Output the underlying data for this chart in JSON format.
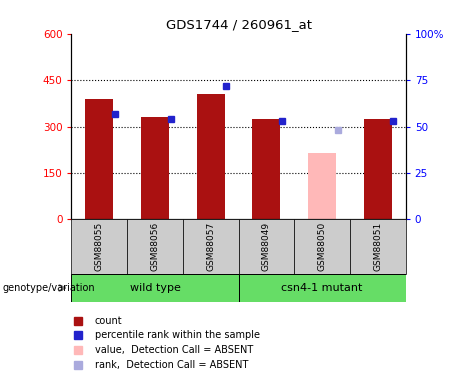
{
  "title": "GDS1744 / 260961_at",
  "samples": [
    "GSM88055",
    "GSM88056",
    "GSM88057",
    "GSM88049",
    "GSM88050",
    "GSM88051"
  ],
  "count_values": [
    390,
    330,
    405,
    325,
    215,
    325
  ],
  "rank_values": [
    57,
    54,
    72,
    53,
    48,
    53
  ],
  "absent_flags": [
    false,
    false,
    false,
    false,
    true,
    false
  ],
  "ylim_left": [
    0,
    600
  ],
  "ylim_right": [
    0,
    100
  ],
  "yticks_left": [
    0,
    150,
    300,
    450,
    600
  ],
  "yticks_right": [
    0,
    25,
    50,
    75,
    100
  ],
  "ytick_labels_left": [
    "0",
    "150",
    "300",
    "450",
    "600"
  ],
  "ytick_labels_right": [
    "0",
    "25",
    "50",
    "75",
    "100%"
  ],
  "color_bar_present": "#aa1111",
  "color_bar_absent": "#ffb8b8",
  "color_rank_present": "#2222cc",
  "color_rank_absent": "#aaaadd",
  "wild_type_label": "wild type",
  "mutant_label": "csn4-1 mutant",
  "genotype_label": "genotype/variation",
  "group_bg_color": "#66dd66",
  "xtick_bg_color": "#cccccc",
  "legend_items": [
    {
      "label": "count",
      "color": "#aa1111"
    },
    {
      "label": "percentile rank within the sample",
      "color": "#2222cc"
    },
    {
      "label": "value,  Detection Call = ABSENT",
      "color": "#ffb8b8"
    },
    {
      "label": "rank,  Detection Call = ABSENT",
      "color": "#aaaadd"
    }
  ]
}
